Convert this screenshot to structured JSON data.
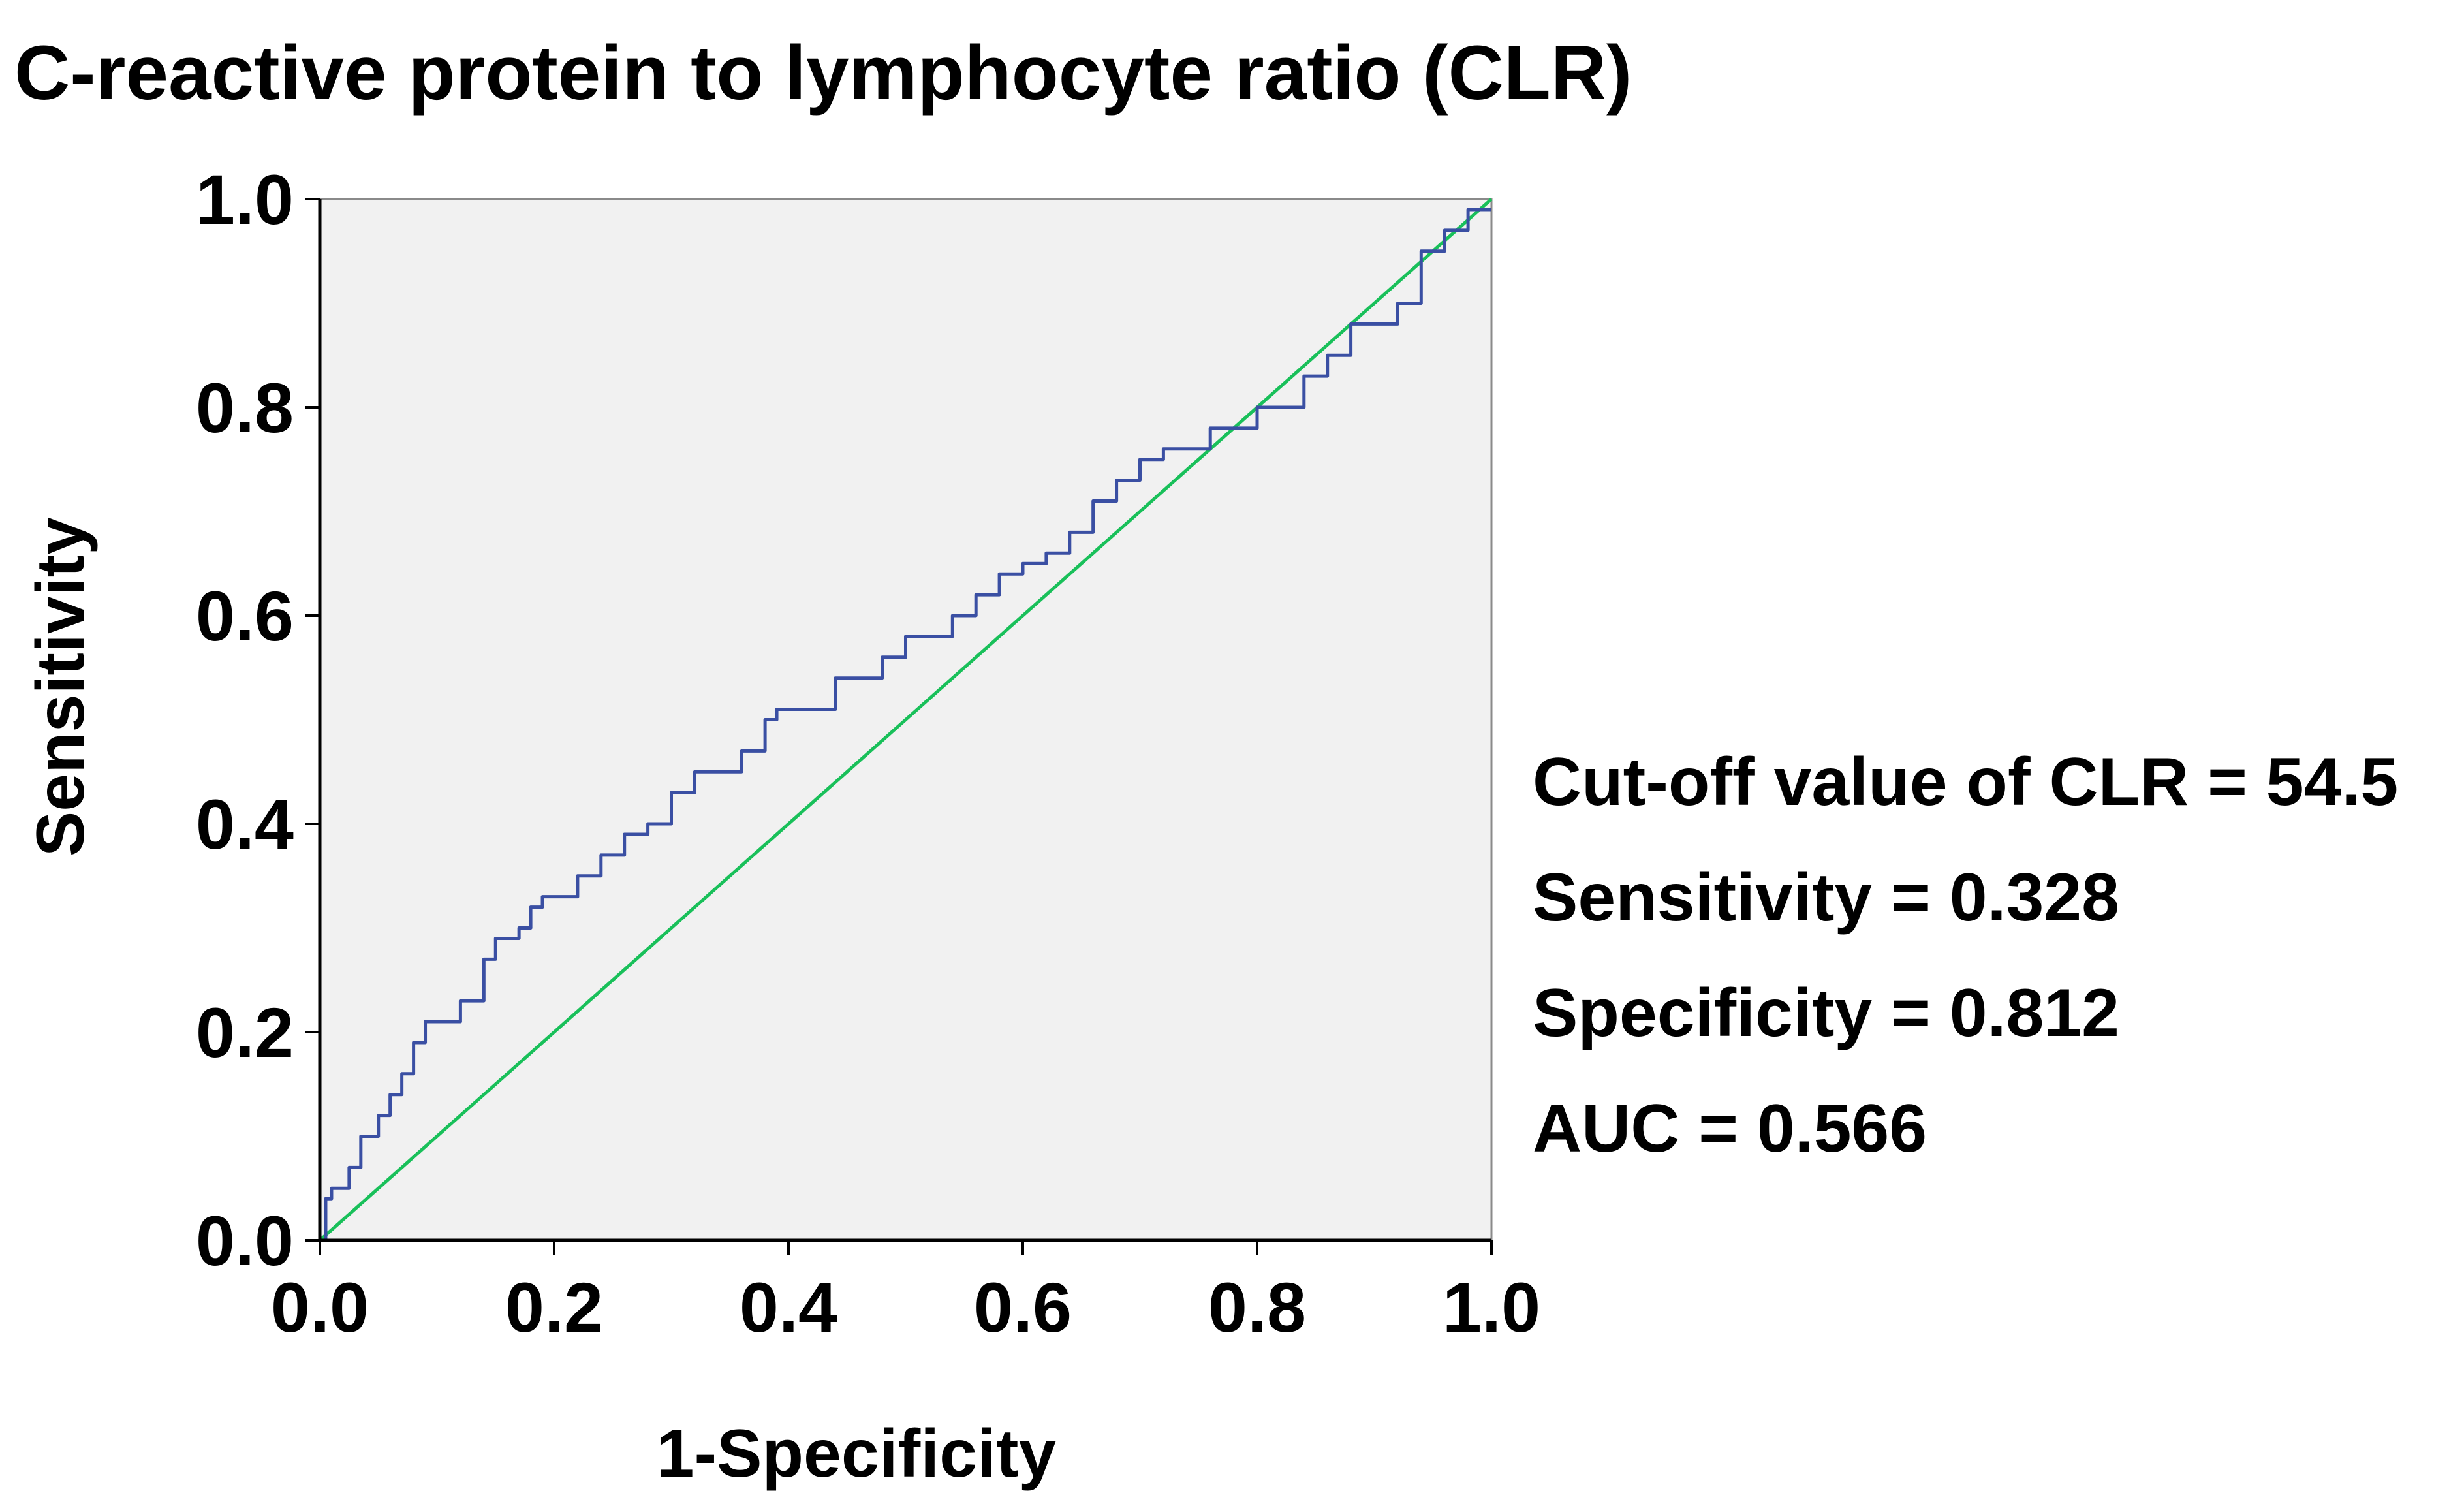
{
  "chart_data": {
    "type": "line",
    "title": "C-reactive protein to lymphocyte ratio (CLR)",
    "xlabel": "1-Specificity",
    "ylabel": "Sensitivity",
    "xlim": [
      0,
      1
    ],
    "ylim": [
      0,
      1
    ],
    "xticks": [
      "0.0",
      "0.2",
      "0.4",
      "0.6",
      "0.8",
      "1.0"
    ],
    "yticks": [
      "0.0",
      "0.2",
      "0.4",
      "0.6",
      "0.8",
      "1.0"
    ],
    "grid": false,
    "colors": {
      "plot_background": "#f1f1f1",
      "roc_curve": "#3a4fa3",
      "reference_line": "#19c05a",
      "axis": "#000000"
    },
    "series": [
      {
        "name": "ROC curve",
        "x": [
          0.0,
          0.005,
          0.01,
          0.025,
          0.035,
          0.05,
          0.06,
          0.07,
          0.08,
          0.09,
          0.1,
          0.12,
          0.14,
          0.15,
          0.17,
          0.18,
          0.19,
          0.2,
          0.22,
          0.24,
          0.26,
          0.28,
          0.3,
          0.32,
          0.34,
          0.36,
          0.38,
          0.39,
          0.41,
          0.44,
          0.46,
          0.48,
          0.5,
          0.53,
          0.54,
          0.56,
          0.58,
          0.6,
          0.62,
          0.64,
          0.66,
          0.68,
          0.7,
          0.72,
          0.76,
          0.8,
          0.84,
          0.86,
          0.88,
          0.9,
          0.92,
          0.94,
          0.96,
          0.98,
          1.0
        ],
        "y": [
          0.0,
          0.04,
          0.05,
          0.07,
          0.1,
          0.12,
          0.14,
          0.16,
          0.19,
          0.21,
          0.21,
          0.23,
          0.27,
          0.29,
          0.3,
          0.32,
          0.33,
          0.33,
          0.35,
          0.37,
          0.39,
          0.4,
          0.43,
          0.45,
          0.45,
          0.47,
          0.5,
          0.51,
          0.51,
          0.54,
          0.54,
          0.56,
          0.58,
          0.58,
          0.6,
          0.62,
          0.64,
          0.65,
          0.66,
          0.68,
          0.71,
          0.73,
          0.75,
          0.76,
          0.78,
          0.8,
          0.83,
          0.85,
          0.88,
          0.88,
          0.9,
          0.95,
          0.97,
          0.99,
          0.99
        ]
      },
      {
        "name": "Reference line",
        "x": [
          0,
          1
        ],
        "y": [
          0,
          1
        ]
      }
    ],
    "annotations": [
      "Cut-off value of CLR = 54.5",
      "Sensitivity = 0.328",
      "Specificity = 0.812",
      "AUC = 0.566"
    ]
  }
}
